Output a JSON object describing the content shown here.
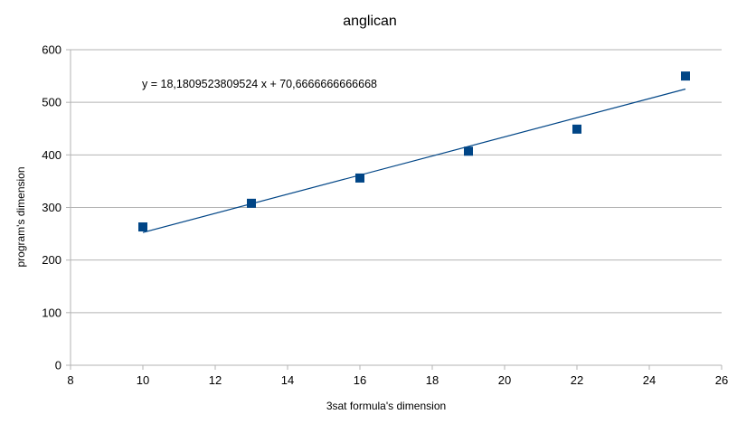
{
  "chart_data": {
    "type": "scatter",
    "title": "anglican",
    "xlabel": "3sat formula's dimension",
    "ylabel": "program's dimension",
    "xlim": [
      8,
      26
    ],
    "ylim": [
      0,
      600
    ],
    "xticks": [
      8,
      10,
      12,
      14,
      16,
      18,
      20,
      22,
      24,
      26
    ],
    "yticks": [
      0,
      100,
      200,
      300,
      400,
      500,
      600
    ],
    "grid": "horizontal",
    "legend": "none",
    "series": [
      {
        "x": [
          10,
          13,
          16,
          19,
          22,
          25
        ],
        "y": [
          263,
          308,
          356,
          407,
          449,
          550
        ],
        "color": "#004586",
        "marker": "square"
      }
    ],
    "trendline": {
      "type": "linear",
      "slope": 18.1809523809524,
      "intercept": 70.6666666666668,
      "x_range": [
        10,
        25
      ],
      "color": "#004586",
      "equation_label": "y = 18,1809523809524 x + 70,6666666666668"
    }
  }
}
